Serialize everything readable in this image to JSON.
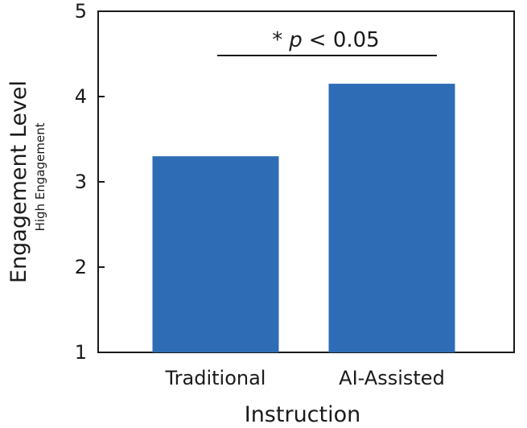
{
  "chart_data": {
    "type": "bar",
    "categories": [
      "Traditional",
      "AI-Assisted"
    ],
    "values": [
      3.3,
      4.15
    ],
    "title": "",
    "xlabel": "Instruction",
    "ylabel": "Engagement Level",
    "ylabel_sub": "High Engagement",
    "ylim": [
      1,
      5
    ],
    "yticks": [
      "1",
      "2",
      "3",
      "4",
      "5"
    ],
    "bar_color": "#2e6db5",
    "grid": false,
    "annotation": {
      "star": "*",
      "p": "p",
      "rest": "< 0.05",
      "span": [
        "Traditional",
        "AI-Assisted"
      ]
    }
  }
}
